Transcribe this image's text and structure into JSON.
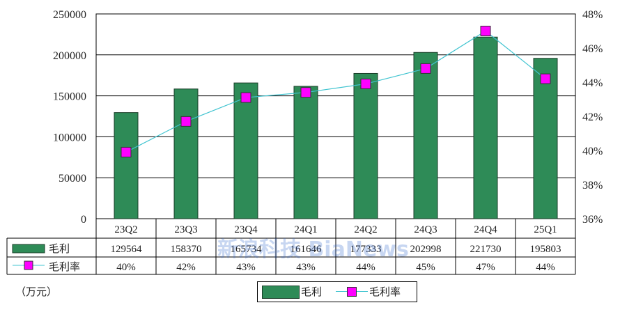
{
  "chart_data": {
    "type": "bar",
    "categories": [
      "23Q2",
      "23Q3",
      "23Q4",
      "24Q1",
      "24Q2",
      "24Q3",
      "24Q4",
      "25Q1"
    ],
    "series": [
      {
        "name": "毛利",
        "type": "bar",
        "axis": "left",
        "values": [
          129564,
          158370,
          165734,
          161646,
          177333,
          202998,
          221730,
          195803
        ]
      },
      {
        "name": "毛利率",
        "type": "line",
        "axis": "right",
        "values": [
          39.9,
          41.7,
          43.1,
          43.4,
          43.9,
          44.8,
          47.0,
          44.2
        ],
        "labels": [
          "40%",
          "42%",
          "43%",
          "43%",
          "44%",
          "45%",
          "47%",
          "44%"
        ]
      }
    ],
    "left_axis": {
      "range": [
        0,
        250000
      ],
      "ticks": [
        "0",
        "50000",
        "100000",
        "150000",
        "200000",
        "250000"
      ]
    },
    "right_axis": {
      "range": [
        36,
        48
      ],
      "ticks": [
        "36%",
        "38%",
        "40%",
        "42%",
        "44%",
        "46%",
        "48%"
      ]
    },
    "table_row_labels": [
      "毛利",
      "毛利率"
    ],
    "unit": "（万元）",
    "legend": [
      "毛利",
      "毛利率"
    ],
    "grid": true,
    "colors": {
      "bar": "#2e8b57",
      "line": "#40c4d0",
      "marker": "#ff00ff"
    },
    "watermark": "新浪科技 BiaNews"
  }
}
